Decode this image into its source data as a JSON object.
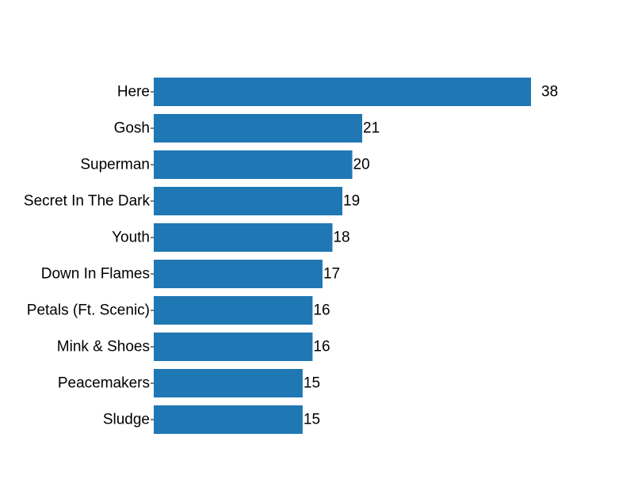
{
  "chart_data": {
    "type": "bar",
    "orientation": "horizontal",
    "categories": [
      "Here",
      "Gosh",
      "Superman",
      "Secret In The Dark",
      "Youth",
      "Down In Flames",
      "Petals (Ft. Scenic)",
      "Mink & Shoes",
      "Peacemakers",
      "Sludge"
    ],
    "values": [
      38,
      21,
      20,
      19,
      18,
      17,
      16,
      16,
      15,
      15
    ],
    "value_labels": [
      "38",
      "21",
      "20",
      "19",
      "18",
      "17",
      "16",
      "16",
      "15",
      "15"
    ],
    "title": "",
    "xlabel": "",
    "ylabel": "",
    "xlim": [
      0,
      38
    ],
    "grid": false,
    "legend": "none",
    "bar_color": "#1f77b4"
  }
}
